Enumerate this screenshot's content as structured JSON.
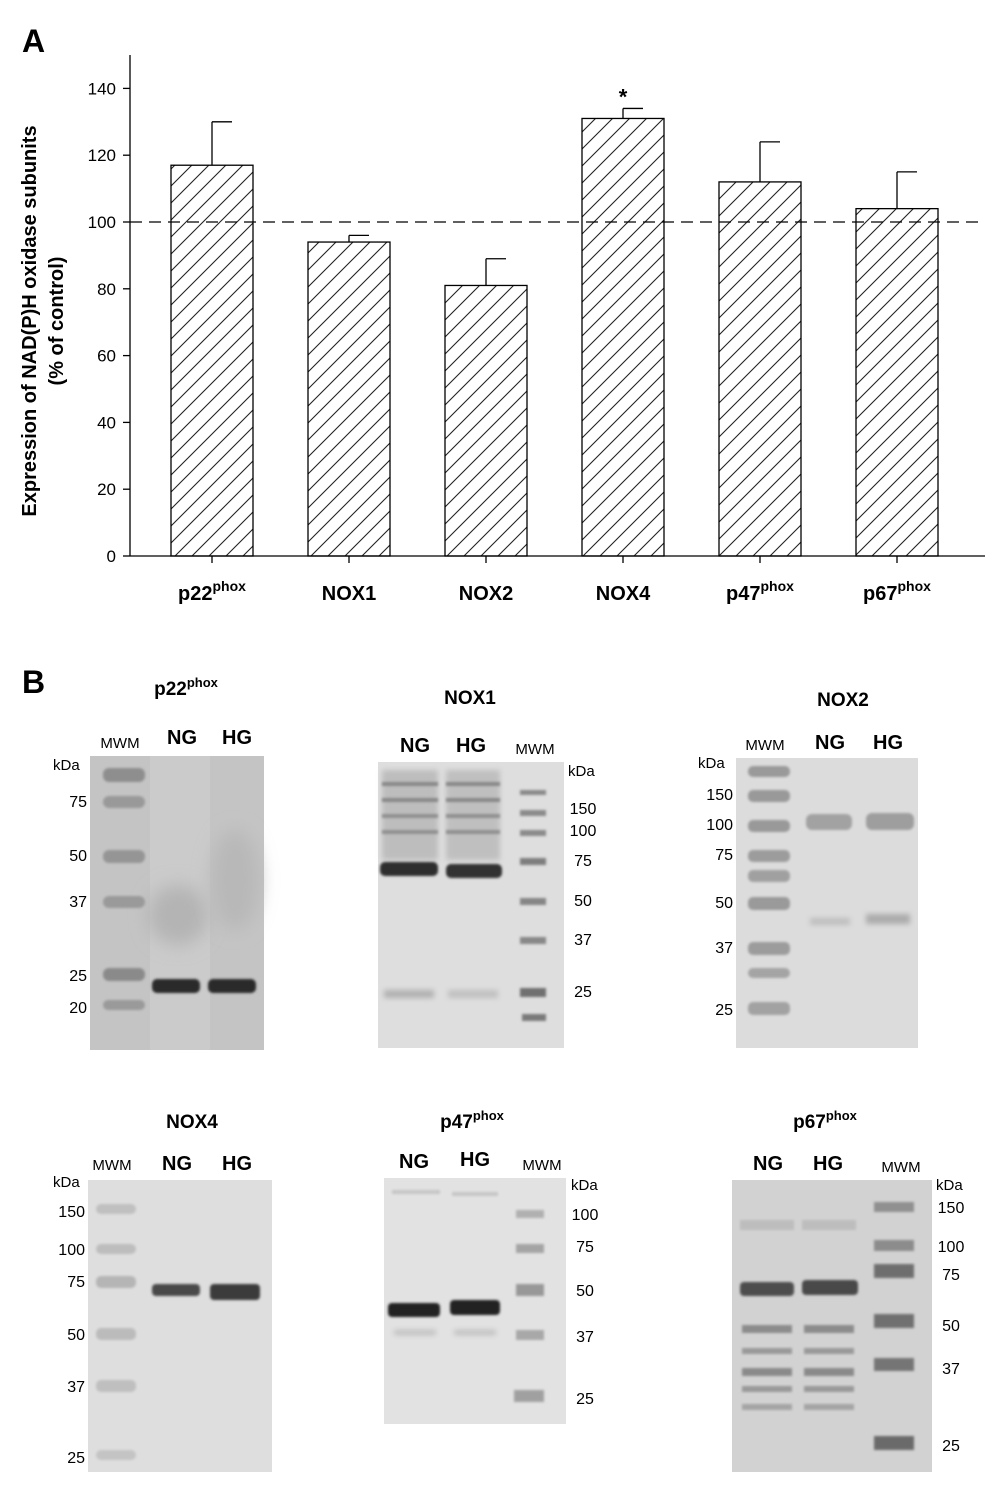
{
  "panel_a_label": "A",
  "panel_b_label": "B",
  "chart_data": {
    "type": "bar",
    "title": "",
    "ylabel_line1": "Expression of NAD(P)H oxidase subunits",
    "ylabel_line2": "(% of control)",
    "xlabel": "",
    "ylim": [
      0,
      150
    ],
    "yticks": [
      0,
      20,
      40,
      60,
      80,
      100,
      120,
      140
    ],
    "reference_line": 100,
    "grid": false,
    "fill_pattern": "diagonal-hatch",
    "categories": [
      {
        "base": "p22",
        "sup": "phox"
      },
      {
        "base": "NOX1",
        "sup": ""
      },
      {
        "base": "NOX2",
        "sup": ""
      },
      {
        "base": "NOX4",
        "sup": ""
      },
      {
        "base": "p47",
        "sup": "phox"
      },
      {
        "base": "p67",
        "sup": "phox"
      }
    ],
    "values": [
      117,
      94,
      81,
      131,
      112,
      104
    ],
    "errors": [
      13,
      2,
      8,
      3,
      12,
      11
    ],
    "annotations": [
      "",
      "",
      "",
      "*",
      "",
      ""
    ]
  },
  "blots": [
    {
      "title": {
        "base": "p22",
        "sup": "phox"
      },
      "lanes": [
        "MWM",
        "NG",
        "HG"
      ],
      "kda_label": "kDa",
      "markers": [
        "75",
        "50",
        "37",
        "25",
        "20"
      ]
    },
    {
      "title": {
        "base": "NOX1",
        "sup": ""
      },
      "lanes": [
        "NG",
        "HG",
        "MWM"
      ],
      "kda_label": "kDa",
      "markers": [
        "150",
        "100",
        "75",
        "50",
        "37",
        "25"
      ]
    },
    {
      "title": {
        "base": "NOX2",
        "sup": ""
      },
      "lanes": [
        "MWM",
        "NG",
        "HG"
      ],
      "kda_label": "kDa",
      "markers": [
        "150",
        "100",
        "75",
        "50",
        "37",
        "25"
      ]
    },
    {
      "title": {
        "base": "NOX4",
        "sup": ""
      },
      "lanes": [
        "MWM",
        "NG",
        "HG"
      ],
      "kda_label": "kDa",
      "markers": [
        "150",
        "100",
        "75",
        "50",
        "37",
        "25"
      ]
    },
    {
      "title": {
        "base": "p47",
        "sup": "phox"
      },
      "lanes": [
        "NG",
        "HG",
        "MWM"
      ],
      "kda_label": "kDa",
      "markers": [
        "100",
        "75",
        "50",
        "37",
        "25"
      ]
    },
    {
      "title": {
        "base": "p67",
        "sup": "phox"
      },
      "lanes": [
        "NG",
        "HG",
        "MWM"
      ],
      "kda_label": "kDa",
      "markers": [
        "150",
        "100",
        "75",
        "50",
        "37",
        "25"
      ]
    }
  ]
}
